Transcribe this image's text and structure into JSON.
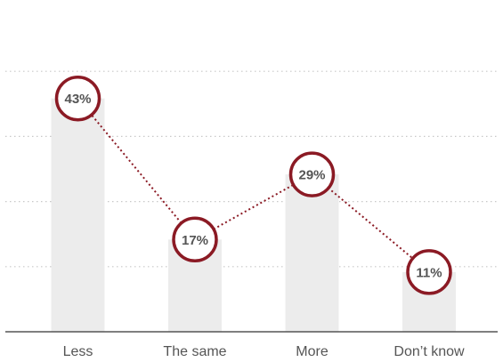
{
  "chart_data": {
    "type": "bar",
    "categories": [
      "Less",
      "The same",
      "More",
      "Don’t know"
    ],
    "values": [
      43,
      17,
      29,
      11
    ],
    "data_labels": [
      "43%",
      "17%",
      "29%",
      "11%"
    ],
    "ylim": [
      0,
      50
    ],
    "grid": true,
    "connector_line": true,
    "colors": {
      "bar": "#ececec",
      "marker": "#8b1a24",
      "text": "#555555",
      "grid": "#c8c8c8",
      "axis": "#555555"
    }
  }
}
